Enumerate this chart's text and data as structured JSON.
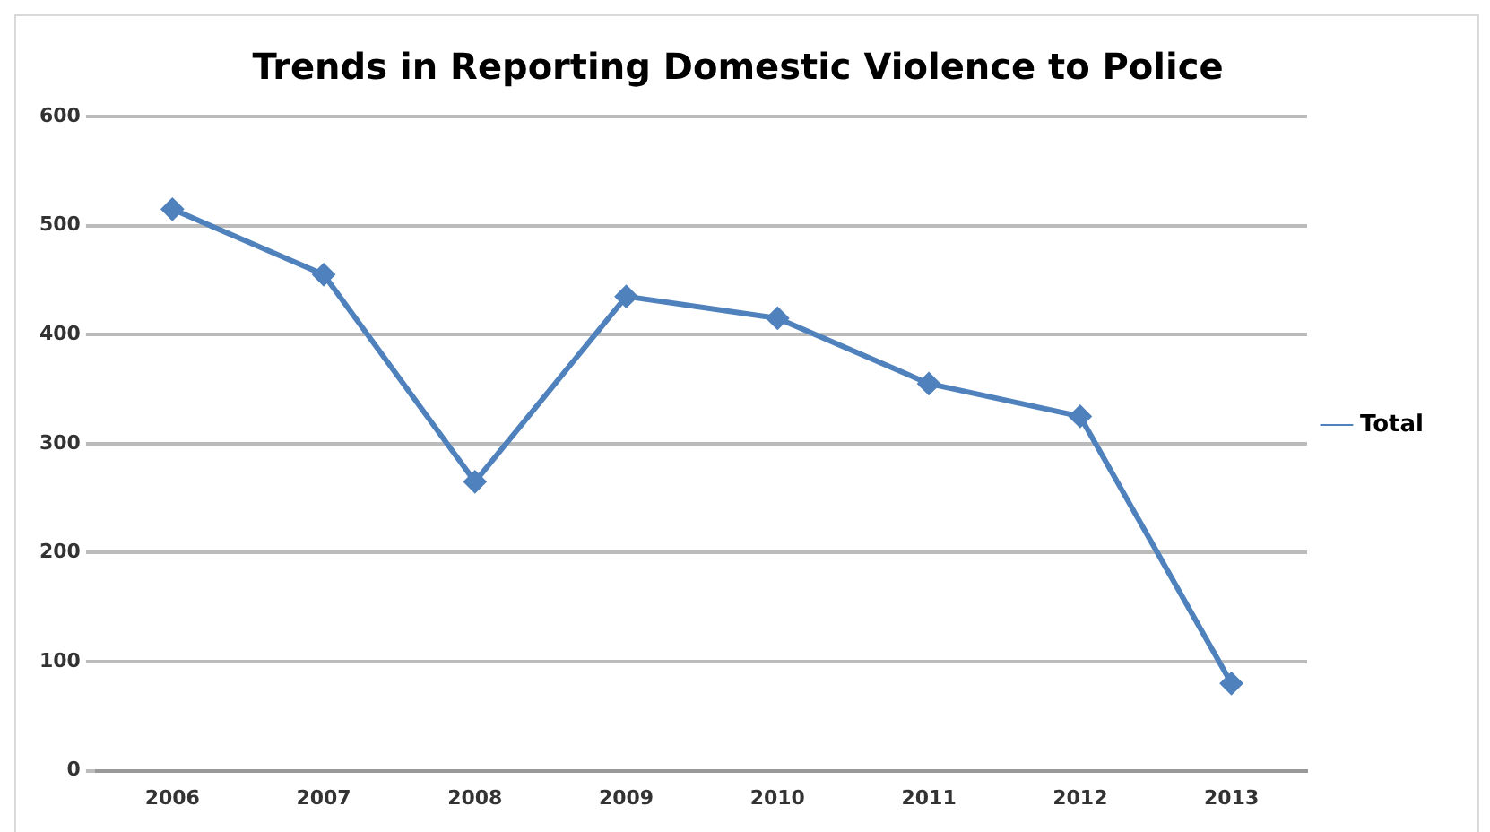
{
  "chart_data": {
    "type": "line",
    "title": "Trends in Reporting Domestic Violence to Police",
    "categories": [
      "2006",
      "2007",
      "2008",
      "2009",
      "2010",
      "2011",
      "2012",
      "2013"
    ],
    "series": [
      {
        "name": "Total",
        "color": "#4f81bd",
        "values": [
          515,
          455,
          265,
          435,
          415,
          355,
          325,
          80
        ]
      }
    ],
    "ylim": [
      0,
      600
    ],
    "yticks": [
      0,
      100,
      200,
      300,
      400,
      500,
      600
    ],
    "grid": "y",
    "legend": "right",
    "marker": "diamond",
    "line_style": "solid"
  }
}
